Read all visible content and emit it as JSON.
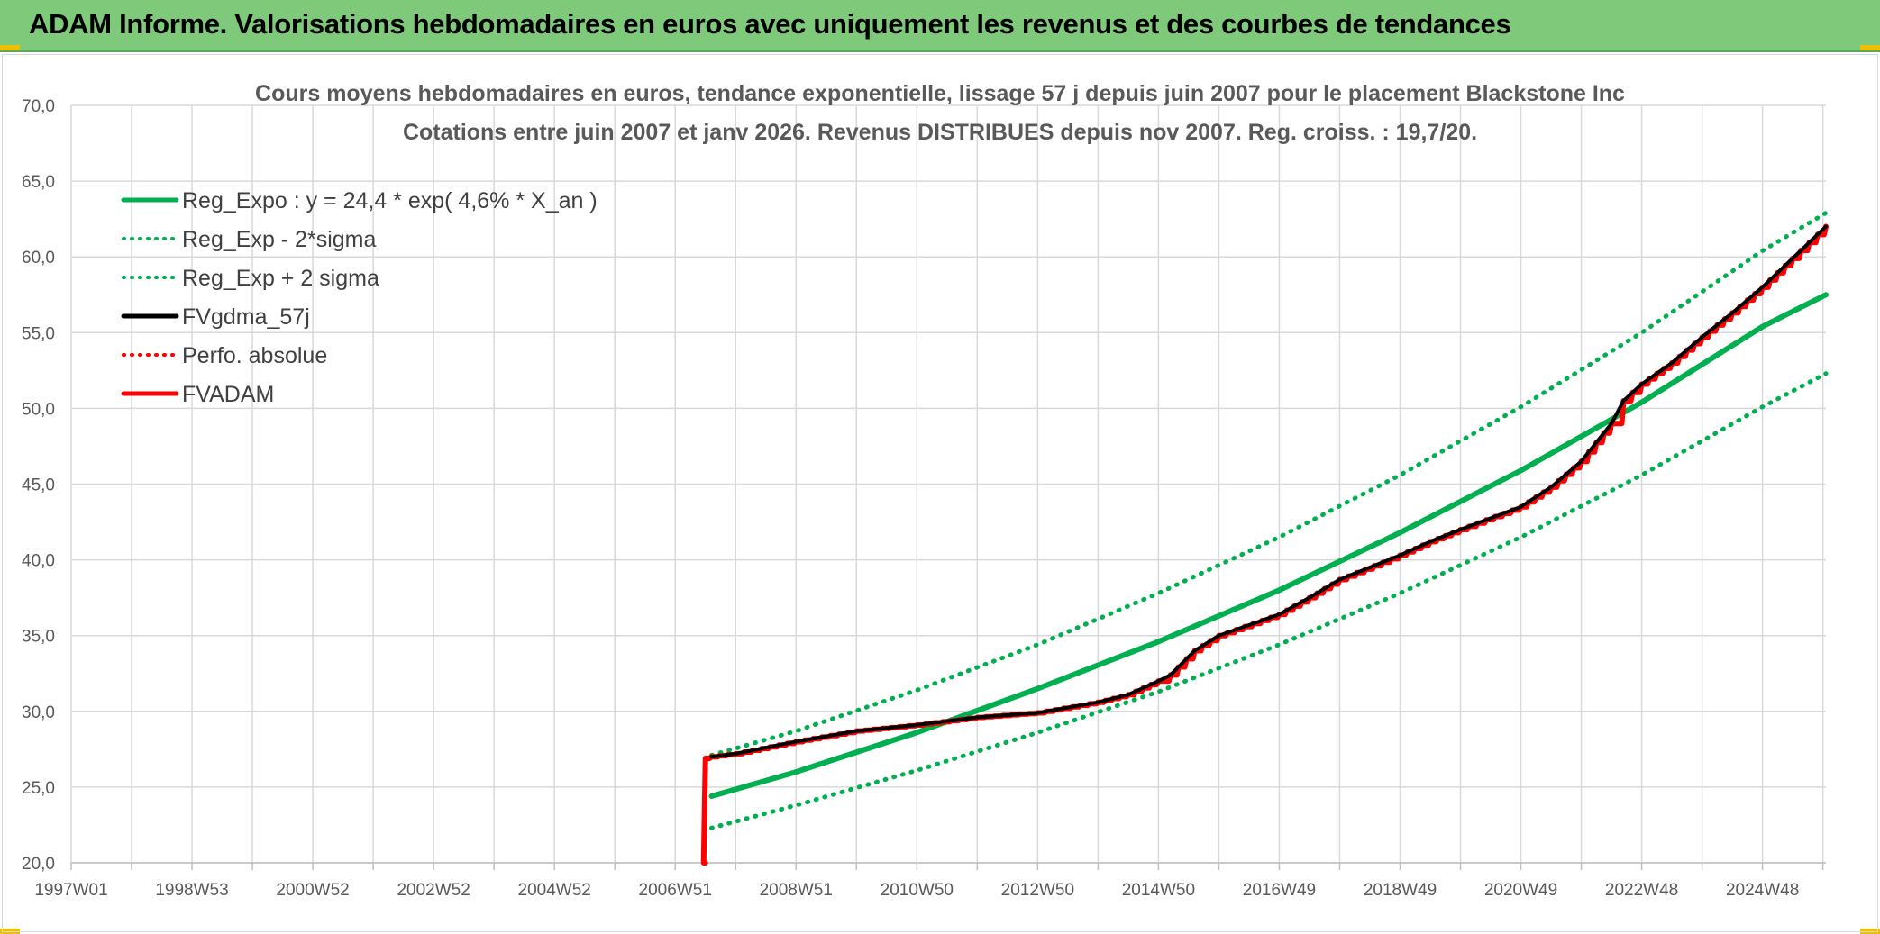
{
  "header": {
    "title": "ADAM Informe. Valorisations hebdomadaires en euros avec uniquement les revenus et des courbes de tendances"
  },
  "colors": {
    "banner": "#7fc97a",
    "green": "#00b050",
    "red": "#ff0000",
    "black": "#000000",
    "grid": "#d9d9d9",
    "accent": "#f0c000"
  },
  "chart_data": {
    "type": "line",
    "title": "Cours moyens hebdomadaires en euros, tendance exponentielle, lissage 57 j depuis juin 2007 pour le placement Blackstone Inc",
    "subtitle": "Cotations entre juin 2007 et janv 2026. Revenus DISTRIBUES depuis nov 2007. Reg. croiss. : 19,7/20.",
    "xlabel": "",
    "ylabel": "",
    "grid": true,
    "legend_position": "top-left",
    "x_range": [
      1997.0,
      2026.05
    ],
    "ylim": [
      20,
      70
    ],
    "y_ticks": [
      "20,0",
      "25,0",
      "30,0",
      "35,0",
      "40,0",
      "45,0",
      "50,0",
      "55,0",
      "60,0",
      "65,0",
      "70,0"
    ],
    "x_ticks": [
      {
        "label": "1997W01",
        "x": 1997.0
      },
      {
        "label": "1998W53",
        "x": 1999.0
      },
      {
        "label": "2000W52",
        "x": 2001.0
      },
      {
        "label": "2002W52",
        "x": 2003.0
      },
      {
        "label": "2004W52",
        "x": 2005.0
      },
      {
        "label": "2006W51",
        "x": 2007.0
      },
      {
        "label": "2008W51",
        "x": 2009.0
      },
      {
        "label": "2010W50",
        "x": 2011.0
      },
      {
        "label": "2012W50",
        "x": 2013.0
      },
      {
        "label": "2014W50",
        "x": 2015.0
      },
      {
        "label": "2016W49",
        "x": 2017.0
      },
      {
        "label": "2018W49",
        "x": 2019.0
      },
      {
        "label": "2020W49",
        "x": 2021.0
      },
      {
        "label": "2022W48",
        "x": 2023.0
      },
      {
        "label": "2024W48",
        "x": 2025.0
      }
    ],
    "series": [
      {
        "name": "Reg_Expo : y = 24,4 * exp( 4,6% *  X_an )",
        "color": "#00b050",
        "style": "solid",
        "width": 6,
        "x": [
          2007.6,
          2009,
          2011,
          2013,
          2015,
          2017,
          2019,
          2021,
          2023,
          2025,
          2026.05
        ],
        "values": [
          24.4,
          26.0,
          28.6,
          31.5,
          34.6,
          38.0,
          41.8,
          45.9,
          50.4,
          55.4,
          57.5
        ]
      },
      {
        "name": "Reg_Exp - 2*sigma",
        "color": "#00b050",
        "style": "dotted",
        "width": 5,
        "x": [
          2007.6,
          2009,
          2011,
          2013,
          2015,
          2017,
          2019,
          2021,
          2023,
          2025,
          2026.05
        ],
        "values": [
          22.3,
          23.8,
          26.1,
          28.6,
          31.3,
          34.4,
          37.8,
          41.5,
          45.6,
          50.1,
          52.3
        ]
      },
      {
        "name": "Reg_Exp + 2 sigma",
        "color": "#00b050",
        "style": "dotted",
        "width": 5,
        "x": [
          2007.6,
          2009,
          2011,
          2013,
          2015,
          2017,
          2019,
          2021,
          2023,
          2025,
          2026.05
        ],
        "values": [
          27.1,
          28.7,
          31.4,
          34.4,
          37.8,
          41.5,
          45.6,
          50.1,
          55.0,
          60.4,
          62.9
        ]
      },
      {
        "name": "FVgdma_57j",
        "color": "#000000",
        "style": "solid",
        "width": 4,
        "x": [
          2007.6,
          2008.0,
          2009.0,
          2010.0,
          2011.0,
          2012.0,
          2013.0,
          2014.0,
          2014.5,
          2015.0,
          2015.2,
          2015.6,
          2016.0,
          2017.0,
          2017.5,
          2018.0,
          2019.0,
          2019.5,
          2020.0,
          2021.0,
          2021.5,
          2022.0,
          2022.5,
          2022.7,
          2023.0,
          2023.5,
          2024.0,
          2024.5,
          2025.0,
          2025.5,
          2026.05
        ],
        "values": [
          27.0,
          27.2,
          28.0,
          28.7,
          29.1,
          29.6,
          29.9,
          30.6,
          31.1,
          32.0,
          32.4,
          34.0,
          35.0,
          36.4,
          37.5,
          38.7,
          40.3,
          41.2,
          42.0,
          43.5,
          44.8,
          46.5,
          49.0,
          50.5,
          51.6,
          53.0,
          54.7,
          56.3,
          58.0,
          59.9,
          62.0
        ]
      },
      {
        "name": "Perfo. absolue",
        "color": "#ff0000",
        "style": "dotted",
        "width": 4,
        "x": [],
        "values": []
      },
      {
        "name": "FVADAM",
        "color": "#ff0000",
        "style": "solid",
        "width": 6,
        "x": [
          2007.5,
          2007.5,
          2007.6,
          2008.0,
          2009.0,
          2010.0,
          2011.0,
          2012.0,
          2013.0,
          2014.0,
          2014.5,
          2015.0,
          2015.2,
          2015.6,
          2016.0,
          2017.0,
          2017.5,
          2018.0,
          2019.0,
          2019.5,
          2020.0,
          2021.0,
          2021.5,
          2022.0,
          2022.5,
          2022.7,
          2023.0,
          2023.5,
          2024.0,
          2024.5,
          2025.0,
          2025.5,
          2026.05
        ],
        "values": [
          20.0,
          26.9,
          27.0,
          27.2,
          28.0,
          28.7,
          29.1,
          29.6,
          29.9,
          30.6,
          31.1,
          32.0,
          32.4,
          34.0,
          35.0,
          36.4,
          37.5,
          38.7,
          40.3,
          41.2,
          42.0,
          43.5,
          44.8,
          46.5,
          49.0,
          50.5,
          51.6,
          53.0,
          54.7,
          56.3,
          58.0,
          59.9,
          62.0
        ]
      }
    ]
  }
}
